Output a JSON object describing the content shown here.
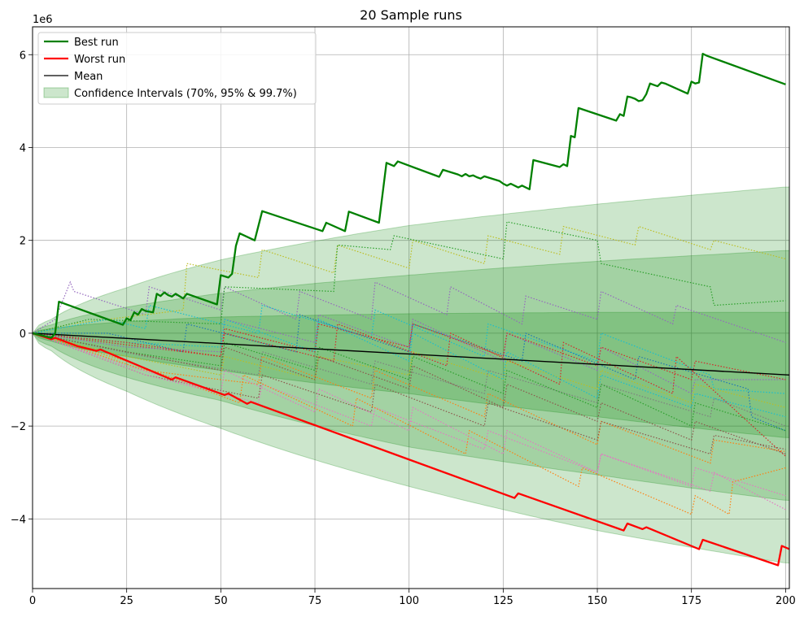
{
  "chart_data": {
    "type": "line",
    "title": "20 Sample runs",
    "xlabel": "",
    "ylabel": "",
    "y_offset_label": "1e6",
    "xlim": [
      0,
      201
    ],
    "ylim": [
      -5.5,
      6.6
    ],
    "y_scale_factor": 1000000,
    "grid": true,
    "legend_position": "top-left",
    "x_ticks": [
      0,
      25,
      50,
      75,
      100,
      125,
      150,
      175,
      200
    ],
    "x_tick_labels": [
      "0",
      "25",
      "50",
      "75",
      "100",
      "125",
      "150",
      "175",
      "200"
    ],
    "y_ticks": [
      -4,
      -2,
      0,
      2,
      4,
      6
    ],
    "y_tick_labels": [
      "−4",
      "−2",
      "0",
      "2",
      "4",
      "6"
    ],
    "legend": [
      {
        "label": "Best run",
        "kind": "line",
        "color": "#008000",
        "width": 2.2
      },
      {
        "label": "Worst run",
        "kind": "line",
        "color": "#ff0000",
        "width": 2.2
      },
      {
        "label": "Mean",
        "kind": "line",
        "color": "#000000",
        "width": 1.3
      },
      {
        "label": "Confidence Intervals (70%, 95% & 99.7%)",
        "kind": "patch",
        "color": "#008000"
      }
    ],
    "confidence_intervals": [
      {
        "level": "99.7%",
        "x": [
          0,
          5,
          25,
          50,
          100,
          150,
          200
        ],
        "upper": [
          0,
          0.3,
          0.98,
          1.58,
          2.32,
          2.78,
          3.15
        ],
        "lower": [
          0,
          -0.38,
          -1.25,
          -2.05,
          -3.3,
          -4.25,
          -4.95
        ]
      },
      {
        "level": "95%",
        "x": [
          0,
          5,
          25,
          50,
          100,
          150,
          200
        ],
        "upper": [
          0,
          0.18,
          0.56,
          0.86,
          1.25,
          1.55,
          1.78
        ],
        "lower": [
          0,
          -0.28,
          -0.95,
          -1.45,
          -2.45,
          -3.05,
          -3.6
        ]
      },
      {
        "level": "70%",
        "x": [
          0,
          5,
          25,
          50,
          100,
          150,
          200
        ],
        "upper": [
          0,
          0.1,
          0.25,
          0.35,
          0.42,
          0.45,
          0.45
        ],
        "lower": [
          0,
          -0.17,
          -0.5,
          -0.8,
          -1.3,
          -1.8,
          -2.25
        ]
      }
    ],
    "best_run": {
      "name": "Best run",
      "color": "#008000",
      "x": [
        0,
        5,
        6,
        7,
        24,
        25,
        26,
        27,
        28,
        29,
        30,
        32,
        33,
        34,
        35,
        36,
        37,
        38,
        40,
        41,
        49,
        50,
        52,
        53,
        54,
        55,
        59,
        61,
        77,
        78,
        83,
        84,
        92,
        94,
        96,
        97,
        108,
        109,
        113,
        114,
        115,
        116,
        117,
        118,
        119,
        120,
        124,
        125,
        126,
        127,
        129,
        130,
        132,
        133,
        140,
        141,
        142,
        143,
        144,
        145,
        155,
        156,
        157,
        158,
        159,
        160,
        161,
        162,
        163,
        164,
        165,
        166,
        167,
        168,
        174,
        175,
        176,
        177,
        178,
        179,
        200
      ],
      "y": [
        0,
        -0.1,
        0.0,
        0.68,
        0.18,
        0.32,
        0.28,
        0.45,
        0.4,
        0.52,
        0.48,
        0.45,
        0.85,
        0.8,
        0.88,
        0.82,
        0.79,
        0.85,
        0.75,
        0.85,
        0.62,
        1.25,
        1.2,
        1.28,
        1.88,
        2.15,
        2.0,
        2.63,
        2.2,
        2.38,
        2.2,
        2.62,
        2.38,
        3.67,
        3.6,
        3.7,
        3.37,
        3.52,
        3.42,
        3.38,
        3.43,
        3.38,
        3.4,
        3.36,
        3.33,
        3.38,
        3.28,
        3.22,
        3.18,
        3.22,
        3.14,
        3.18,
        3.1,
        3.73,
        3.58,
        3.64,
        3.6,
        4.25,
        4.22,
        4.85,
        4.58,
        4.72,
        4.68,
        5.1,
        5.08,
        5.05,
        5.0,
        5.02,
        5.15,
        5.38,
        5.35,
        5.32,
        5.4,
        5.38,
        5.16,
        5.42,
        5.38,
        5.4,
        6.02,
        5.98,
        5.36
      ]
    },
    "worst_run": {
      "name": "Worst run",
      "color": "#ff0000",
      "x": [
        0,
        5,
        6,
        12,
        17,
        18,
        37,
        38,
        51,
        52,
        57,
        58,
        128,
        129,
        157,
        158,
        162,
        163,
        177,
        178,
        198,
        199,
        201
      ],
      "y": [
        0,
        -0.13,
        -0.1,
        -0.28,
        -0.38,
        -0.35,
        -1.0,
        -0.95,
        -1.33,
        -1.3,
        -1.52,
        -1.48,
        -3.55,
        -3.45,
        -4.25,
        -4.1,
        -4.22,
        -4.18,
        -4.65,
        -4.45,
        -5.0,
        -4.58,
        -4.65
      ]
    },
    "mean": {
      "name": "Mean",
      "color": "#000000",
      "x": [
        0,
        201
      ],
      "y": [
        0,
        -0.9
      ]
    },
    "sample_runs": [
      {
        "color": "#9467bd",
        "x": [
          0,
          6,
          10,
          11,
          30,
          31,
          50,
          51,
          70,
          71,
          90,
          91,
          110,
          111,
          130,
          131,
          150,
          151,
          170,
          171,
          200
        ],
        "y": [
          0,
          0.3,
          1.1,
          0.9,
          0.4,
          1.0,
          0.5,
          1.0,
          0.3,
          0.9,
          0.3,
          1.1,
          0.4,
          1.0,
          0.2,
          0.8,
          0.3,
          0.9,
          0.2,
          0.6,
          -0.2
        ]
      },
      {
        "color": "#bcbd22",
        "x": [
          0,
          10,
          40,
          41,
          60,
          61,
          80,
          81,
          100,
          101,
          120,
          121,
          140,
          141,
          160,
          161,
          180,
          181,
          200
        ],
        "y": [
          0,
          0.2,
          0.5,
          1.5,
          1.2,
          1.8,
          1.3,
          1.9,
          1.4,
          2.0,
          1.5,
          2.1,
          1.7,
          2.3,
          1.9,
          2.3,
          1.8,
          2.0,
          1.6
        ]
      },
      {
        "color": "#2ca02c",
        "x": [
          0,
          15,
          50,
          51,
          80,
          81,
          95,
          96,
          125,
          126,
          150,
          151,
          180,
          181,
          200
        ],
        "y": [
          0,
          0.3,
          0.2,
          1.0,
          0.9,
          1.9,
          1.8,
          2.1,
          1.6,
          2.4,
          2.0,
          1.5,
          1.0,
          0.6,
          0.7
        ]
      },
      {
        "color": "#17becf",
        "x": [
          0,
          20,
          30,
          31,
          60,
          61,
          90,
          91,
          120,
          121,
          150,
          151,
          180,
          181,
          200
        ],
        "y": [
          0,
          0.3,
          0.1,
          0.6,
          0.0,
          0.6,
          -0.1,
          0.5,
          -0.5,
          0.2,
          -0.6,
          0.0,
          -0.9,
          -1.2,
          -1.3
        ]
      },
      {
        "color": "#1f77b4",
        "x": [
          0,
          20,
          40,
          41,
          70,
          71,
          100,
          101,
          130,
          131,
          160,
          161,
          190,
          191,
          200
        ],
        "y": [
          0,
          0.0,
          -0.4,
          0.2,
          -0.4,
          0.4,
          -0.4,
          0.2,
          -0.6,
          0.0,
          -1.0,
          -0.5,
          -1.2,
          -1.8,
          -2.1
        ]
      },
      {
        "color": "#d62728",
        "x": [
          0,
          20,
          50,
          51,
          80,
          81,
          110,
          111,
          140,
          141,
          170,
          171,
          200
        ],
        "y": [
          0,
          -0.2,
          -0.5,
          0.0,
          -0.6,
          0.2,
          -0.7,
          0.0,
          -1.1,
          -0.2,
          -1.3,
          -0.5,
          -2.65
        ]
      },
      {
        "color": "#ff7f0e",
        "x": [
          0,
          30,
          60,
          61,
          90,
          91,
          120,
          121,
          150,
          151,
          180,
          181,
          200
        ],
        "y": [
          0,
          -0.8,
          -1.1,
          -0.5,
          -1.4,
          -0.8,
          -1.8,
          -1.3,
          -2.4,
          -1.9,
          -2.8,
          -2.3,
          -2.55
        ]
      },
      {
        "color": "#8c564b",
        "x": [
          0,
          30,
          60,
          61,
          90,
          91,
          120,
          121,
          150,
          151,
          180,
          181,
          200
        ],
        "y": [
          0,
          -0.9,
          -1.4,
          -0.9,
          -1.7,
          -1.1,
          -2.0,
          -1.5,
          -2.3,
          -1.9,
          -2.6,
          -2.2,
          -2.5
        ]
      },
      {
        "color": "#e377c2",
        "x": [
          0,
          30,
          60,
          61,
          90,
          91,
          120,
          121,
          150,
          151,
          180,
          181,
          200
        ],
        "y": [
          0,
          -0.9,
          -1.5,
          -1.1,
          -2.0,
          -1.6,
          -2.5,
          -2.1,
          -3.0,
          -2.6,
          -3.4,
          -3.0,
          -3.8
        ]
      },
      {
        "color": "#ff7f0e",
        "x": [
          0,
          25,
          55,
          56,
          85,
          86,
          115,
          116,
          145,
          146,
          175,
          176,
          185,
          186,
          200
        ],
        "y": [
          0,
          -0.6,
          -1.5,
          -0.9,
          -2.0,
          -1.4,
          -2.6,
          -2.1,
          -3.3,
          -2.9,
          -3.9,
          -3.5,
          -3.9,
          -3.2,
          -2.9
        ]
      },
      {
        "color": "#7f7f7f",
        "x": [
          0,
          30,
          60,
          61,
          90,
          91,
          120,
          121,
          150,
          151,
          180,
          181,
          200
        ],
        "y": [
          0,
          -0.5,
          -0.9,
          -0.4,
          -1.1,
          -0.6,
          -1.3,
          -0.8,
          -1.5,
          -1.1,
          -1.8,
          -1.4,
          -2.0
        ]
      },
      {
        "color": "#bcbd22",
        "x": [
          0,
          25,
          50,
          51,
          75,
          76,
          100,
          101,
          125,
          126,
          150,
          151,
          175,
          176,
          200
        ],
        "y": [
          0,
          -0.5,
          -0.9,
          -0.5,
          -1.0,
          -0.5,
          -0.9,
          -0.4,
          -1.0,
          -0.6,
          -1.2,
          -0.8,
          -1.5,
          -1.1,
          -1.6
        ]
      },
      {
        "color": "#9467bd",
        "x": [
          0,
          25,
          50,
          51,
          75,
          76,
          100,
          101,
          125,
          126,
          150,
          151,
          175,
          176,
          200
        ],
        "y": [
          0,
          -0.3,
          -0.4,
          0.3,
          -0.2,
          0.4,
          -0.3,
          0.3,
          -0.6,
          0.0,
          -0.8,
          -0.3,
          -1.3,
          -1.0,
          -1.0
        ]
      },
      {
        "color": "#17becf",
        "x": [
          0,
          25,
          50,
          51,
          75,
          76,
          100,
          101,
          125,
          126,
          150,
          151,
          175,
          176,
          200
        ],
        "y": [
          0,
          -0.2,
          -0.3,
          0.3,
          -0.4,
          0.3,
          -0.6,
          0.0,
          -1.0,
          -0.4,
          -1.4,
          -0.9,
          -1.6,
          -1.3,
          -1.8
        ]
      },
      {
        "color": "#2ca02c",
        "x": [
          0,
          25,
          50,
          51,
          75,
          76,
          100,
          101,
          125,
          126,
          150,
          151,
          175,
          176,
          200
        ],
        "y": [
          0,
          -0.4,
          -0.7,
          -0.2,
          -0.8,
          -0.3,
          -1.0,
          -0.5,
          -1.3,
          -0.8,
          -1.6,
          -1.1,
          -2.0,
          -1.5,
          -2.1
        ]
      },
      {
        "color": "#d62728",
        "x": [
          0,
          25,
          50,
          51,
          75,
          76,
          100,
          101,
          125,
          126,
          150,
          151,
          175,
          176,
          200
        ],
        "y": [
          0,
          -0.2,
          -0.5,
          0.1,
          -0.4,
          0.2,
          -0.3,
          0.2,
          -0.5,
          0.0,
          -0.7,
          -0.3,
          -1.0,
          -0.6,
          -1.0
        ]
      },
      {
        "color": "#e377c2",
        "x": [
          0,
          25,
          50,
          51,
          75,
          76,
          100,
          101,
          125,
          126,
          150,
          151,
          175,
          176,
          200
        ],
        "y": [
          0,
          -0.7,
          -1.3,
          -0.8,
          -1.7,
          -1.2,
          -2.1,
          -1.6,
          -2.6,
          -2.1,
          -3.0,
          -2.6,
          -3.3,
          -2.9,
          -3.5
        ]
      },
      {
        "color": "#8c564b",
        "x": [
          0,
          25,
          50,
          51,
          75,
          76,
          100,
          101,
          125,
          126,
          150,
          151,
          175,
          176,
          200
        ],
        "y": [
          0,
          -0.4,
          -0.8,
          -0.3,
          -1.0,
          -0.5,
          -1.2,
          -0.7,
          -1.6,
          -1.1,
          -1.9,
          -1.5,
          -2.3,
          -1.9,
          -2.6
        ]
      }
    ]
  }
}
